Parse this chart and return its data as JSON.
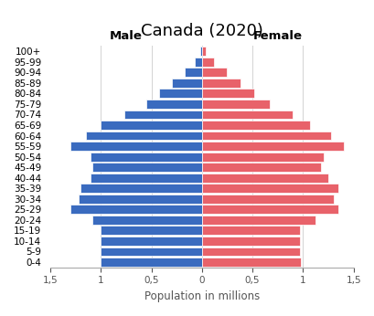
{
  "title": "Canada (2020)",
  "xlabel": "Population in millions",
  "male_label": "Male",
  "female_label": "Female",
  "age_groups": [
    "0-4",
    "5-9",
    "10-14",
    "15-19",
    "20-24",
    "25-29",
    "30-34",
    "35-39",
    "40-44",
    "45-49",
    "50-54",
    "55-59",
    "60-64",
    "65-69",
    "70-74",
    "75-79",
    "80-84",
    "85-89",
    "90-94",
    "95-99",
    "100+"
  ],
  "male_values": [
    1.0,
    1.0,
    1.0,
    1.0,
    1.08,
    1.3,
    1.22,
    1.2,
    1.1,
    1.08,
    1.1,
    1.3,
    1.15,
    1.0,
    0.77,
    0.55,
    0.42,
    0.3,
    0.17,
    0.07,
    0.02
  ],
  "female_values": [
    0.98,
    0.97,
    0.97,
    0.97,
    1.12,
    1.35,
    1.3,
    1.35,
    1.25,
    1.18,
    1.2,
    1.4,
    1.28,
    1.07,
    0.9,
    0.67,
    0.52,
    0.38,
    0.25,
    0.12,
    0.04
  ],
  "male_color": "#3A6BBF",
  "female_color": "#E8626A",
  "background_color": "#FFFFFF",
  "xlim": 1.5,
  "title_fontsize": 13,
  "label_fontsize": 8.5,
  "tick_fontsize": 7.5,
  "bar_height": 0.85
}
